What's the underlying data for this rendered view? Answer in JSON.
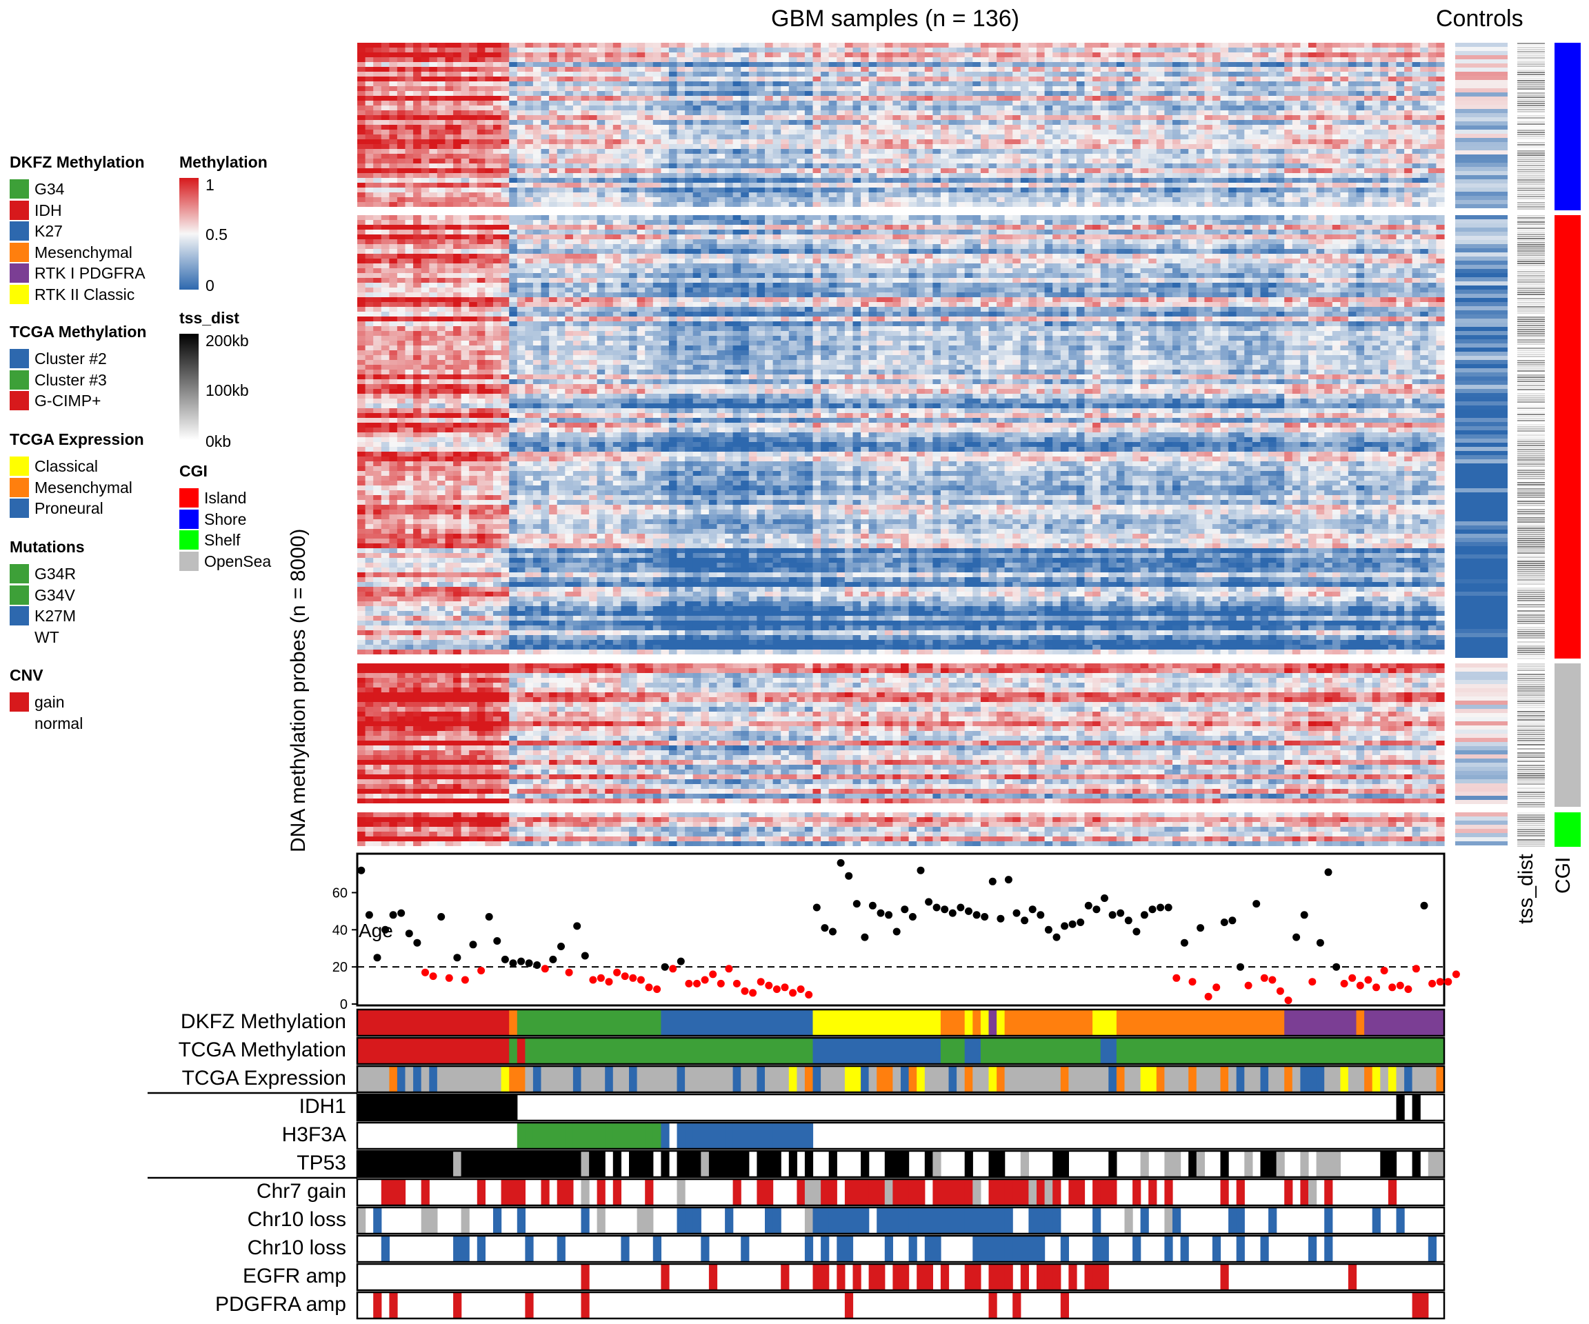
{
  "title_gbm": "GBM samples (n = 136)",
  "title_controls": "Controls",
  "ylabel": "DNA methylation probes (n = 8000)",
  "side_labels": {
    "tss": "tss_dist",
    "cgi": "CGI"
  },
  "legends": {
    "dkfz": {
      "title": "DKFZ Methylation",
      "items": [
        {
          "label": "G34",
          "color": "#3DA038"
        },
        {
          "label": "IDH",
          "color": "#D7191C"
        },
        {
          "label": "K27",
          "color": "#2D68AE"
        },
        {
          "label": "Mesenchymal",
          "color": "#FF7F0E"
        },
        {
          "label": "RTK I PDGFRA",
          "color": "#7B3E94"
        },
        {
          "label": "RTK II Classic",
          "color": "#FFFF00"
        }
      ]
    },
    "tcga_meth": {
      "title": "TCGA Methylation",
      "items": [
        {
          "label": "Cluster #2",
          "color": "#2D68AE"
        },
        {
          "label": "Cluster #3",
          "color": "#3DA038"
        },
        {
          "label": "G-CIMP+",
          "color": "#D7191C"
        }
      ]
    },
    "tcga_expr": {
      "title": "TCGA Expression",
      "items": [
        {
          "label": "Classical",
          "color": "#FFFF00"
        },
        {
          "label": "Mesenchymal",
          "color": "#FF7F0E"
        },
        {
          "label": "Proneural",
          "color": "#2D68AE"
        }
      ]
    },
    "mutations": {
      "title": "Mutations",
      "items": [
        {
          "label": "G34R",
          "color": "#3DA038"
        },
        {
          "label": "G34V",
          "color": "#3DA038"
        },
        {
          "label": "K27M",
          "color": "#2D68AE"
        },
        {
          "label": "WT",
          "color": ""
        }
      ]
    },
    "cnv": {
      "title": "CNV",
      "items": [
        {
          "label": "gain",
          "color": "#D7191C"
        },
        {
          "label": "normal",
          "color": ""
        }
      ]
    },
    "methylation": {
      "title": "Methylation",
      "ticks": [
        "1",
        "0.5",
        "0"
      ]
    },
    "tss_dist": {
      "title": "tss_dist",
      "ticks": [
        "200kb",
        "100kb",
        "0kb"
      ]
    },
    "cgi": {
      "title": "CGI",
      "items": [
        {
          "label": "Island",
          "color": "#FF0000"
        },
        {
          "label": "Shore",
          "color": "#0000FF"
        },
        {
          "label": "Shelf",
          "color": "#00FF00"
        },
        {
          "label": "OpenSea",
          "color": "#BEBEBE"
        }
      ]
    }
  },
  "track_labels": [
    "DKFZ Methylation",
    "TCGA Methylation",
    "TCGA Expression",
    "IDH1",
    "H3F3A",
    "TP53",
    "Chr7 gain",
    "Chr10 loss",
    "Chr10 loss",
    "EGFR amp",
    "PDGFRA amp"
  ],
  "chart_data": {
    "type": "heatmap",
    "n_samples": 136,
    "n_probes": 8000,
    "row_blocks": [
      {
        "cgi": "Shore",
        "color": "#0000FF"
      },
      {
        "cgi": "Island",
        "color": "#FF0000"
      },
      {
        "cgi": "OpenSea",
        "color": "#BEBEBE"
      },
      {
        "cgi": "Shelf",
        "color": "#00FF00"
      }
    ],
    "column_groups_dkfz": [
      {
        "label": "IDH",
        "color": "#D7191C",
        "from": 0,
        "to": 19
      },
      {
        "label": "Mesenchymal",
        "color": "#FF7F0E",
        "from": 19,
        "to": 20
      },
      {
        "label": "G34",
        "color": "#3DA038",
        "from": 20,
        "to": 38
      },
      {
        "label": "K27",
        "color": "#2D68AE",
        "from": 38,
        "to": 57
      },
      {
        "label": "RTK II Classic",
        "color": "#FFFF00",
        "from": 57,
        "to": 73
      },
      {
        "label": "Mesenchymal",
        "color": "#FF7F0E",
        "from": 73,
        "to": 76
      },
      {
        "label": "RTK II Classic",
        "color": "#FFFF00",
        "from": 76,
        "to": 77
      },
      {
        "label": "Mesenchymal",
        "color": "#FF7F0E",
        "from": 77,
        "to": 78
      },
      {
        "label": "RTK II Classic",
        "color": "#FFFF00",
        "from": 78,
        "to": 79
      },
      {
        "label": "RTK I PDGFRA",
        "color": "#7B3E94",
        "from": 79,
        "to": 80
      },
      {
        "label": "RTK II Classic",
        "color": "#FFFF00",
        "from": 80,
        "to": 81
      },
      {
        "label": "Mesenchymal",
        "color": "#FF7F0E",
        "from": 81,
        "to": 92
      },
      {
        "label": "RTK II Classic",
        "color": "#FFFF00",
        "from": 92,
        "to": 95
      },
      {
        "label": "Mesenchymal",
        "color": "#FF7F0E",
        "from": 95,
        "to": 116
      },
      {
        "label": "RTK I PDGFRA",
        "color": "#7B3E94",
        "from": 116,
        "to": 125
      },
      {
        "label": "Mesenchymal",
        "color": "#FF7F0E",
        "from": 125,
        "to": 126
      },
      {
        "label": "RTK I PDGFRA",
        "color": "#7B3E94",
        "from": 126,
        "to": 136
      }
    ],
    "column_groups_tcga_meth": [
      {
        "label": "G-CIMP+",
        "color": "#D7191C",
        "from": 0,
        "to": 19
      },
      {
        "label": "Cluster #3",
        "color": "#3DA038",
        "from": 19,
        "to": 20
      },
      {
        "label": "G-CIMP+",
        "color": "#D7191C",
        "from": 20,
        "to": 21
      },
      {
        "label": "Cluster #3",
        "color": "#3DA038",
        "from": 21,
        "to": 57
      },
      {
        "label": "Cluster #2",
        "color": "#2D68AE",
        "from": 57,
        "to": 73
      },
      {
        "label": "Cluster #3",
        "color": "#3DA038",
        "from": 73,
        "to": 76
      },
      {
        "label": "Cluster #2",
        "color": "#2D68AE",
        "from": 76,
        "to": 78
      },
      {
        "label": "Cluster #3",
        "color": "#3DA038",
        "from": 78,
        "to": 93
      },
      {
        "label": "Cluster #2",
        "color": "#2D68AE",
        "from": 93,
        "to": 95
      },
      {
        "label": "Cluster #3",
        "color": "#3DA038",
        "from": 95,
        "to": 136
      }
    ],
    "age": {
      "label": "Age",
      "yticks": [
        0,
        20,
        40,
        60
      ],
      "ylim": [
        0,
        78
      ],
      "threshold": 20,
      "colors": {
        "above": "#000000",
        "below": "#FF0000"
      },
      "values": [
        72,
        48,
        25,
        40,
        48,
        49,
        38,
        33,
        17,
        15,
        47,
        14,
        25,
        13,
        32,
        18,
        47,
        34,
        24,
        22,
        23,
        22,
        21,
        19,
        24,
        31,
        17,
        42,
        26,
        13,
        14,
        12,
        17,
        15,
        14,
        13,
        9,
        8,
        20,
        19,
        23,
        11,
        11,
        13,
        16,
        11,
        19,
        11,
        7,
        6,
        12,
        10,
        8,
        9,
        6,
        8,
        5,
        52,
        41,
        39,
        76,
        69,
        54,
        36,
        53,
        49,
        48,
        39,
        51,
        47,
        72,
        55,
        52,
        51,
        49,
        52,
        50,
        48,
        47,
        66,
        46,
        67,
        49,
        45,
        51,
        48,
        40,
        36,
        42,
        43,
        44,
        53,
        51,
        57,
        48,
        49,
        45,
        39,
        48,
        51,
        52,
        52,
        14,
        33,
        12,
        41,
        4,
        9,
        44,
        45,
        20,
        10,
        54,
        14,
        13,
        7,
        2,
        36,
        48,
        12,
        33,
        71,
        20,
        11,
        14,
        10,
        13,
        9,
        18,
        9,
        10,
        8,
        19,
        53,
        11,
        12,
        12,
        16
      ]
    }
  }
}
